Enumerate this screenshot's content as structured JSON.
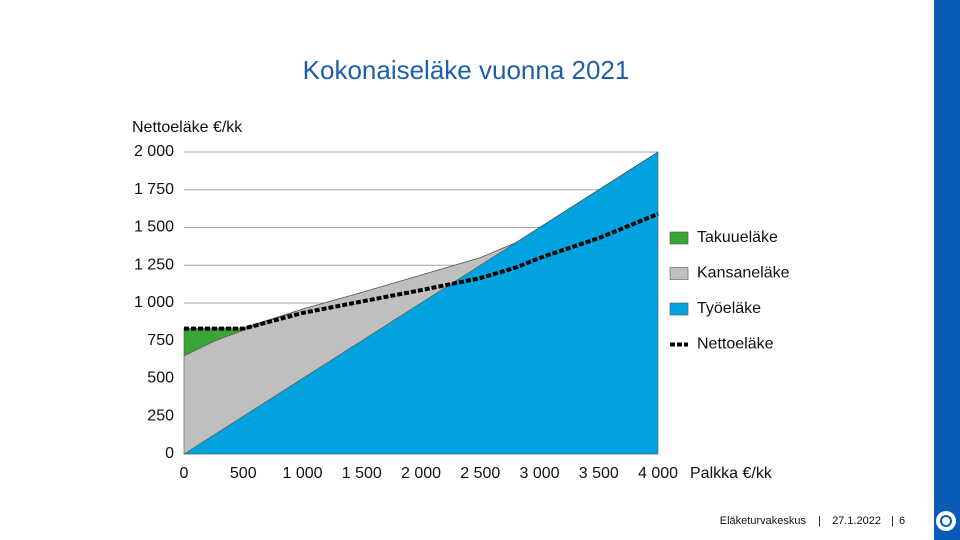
{
  "chart_data": {
    "type": "stacked_area",
    "title": "Kokonaiseläke vuonna 2021",
    "ylabel": "Nettoeläke €/kk",
    "xlabel": "Palkka €/kk",
    "x": [
      0,
      250,
      500,
      1000,
      1500,
      2000,
      2500,
      2800,
      3000,
      3500,
      4000
    ],
    "series": [
      {
        "name": "Työeläke",
        "color": "#00a3e0",
        "values": [
          0,
          125,
          250,
          500,
          750,
          1000,
          1250,
          1400,
          1500,
          1750,
          2000
        ]
      },
      {
        "name": "Kansaneläke",
        "color": "#bfbfbf",
        "values": [
          650,
          620,
          570,
          460,
          320,
          185,
          50,
          0,
          0,
          0,
          0
        ]
      },
      {
        "name": "Takuueläke",
        "color": "#3aa435",
        "values": [
          180,
          90,
          15,
          0,
          0,
          0,
          0,
          0,
          0,
          0,
          0
        ]
      }
    ],
    "line": {
      "name": "Nettoeläke",
      "color": "#000000",
      "values": [
        830,
        830,
        830,
        934,
        1010,
        1085,
        1165,
        1235,
        1298,
        1430,
        1590
      ]
    },
    "legend_order": [
      2,
      1,
      0
    ],
    "xlim": [
      0,
      4000
    ],
    "ylim": [
      0,
      2000
    ],
    "xticks": [
      0,
      500,
      {
        "value": 1000,
        "label": "1 000"
      },
      {
        "value": 1500,
        "label": "1 500"
      },
      {
        "value": 2000,
        "label": "2 000"
      },
      {
        "value": 2500,
        "label": "2 500"
      },
      {
        "value": 3000,
        "label": "3 000"
      },
      {
        "value": 3500,
        "label": "3 500"
      },
      {
        "value": 4000,
        "label": "4 000"
      }
    ],
    "yticks": [
      0,
      250,
      500,
      750,
      {
        "value": 1000,
        "label": "1 000"
      },
      {
        "value": 1250,
        "label": "1 250"
      },
      {
        "value": 1500,
        "label": "1 500"
      },
      {
        "value": 1750,
        "label": "1 750"
      },
      {
        "value": 2000,
        "label": "2 000"
      }
    ],
    "grid": true
  },
  "footer": {
    "organization": "Eläketurvakeskus",
    "date": "27.1.2022",
    "page": "6"
  }
}
